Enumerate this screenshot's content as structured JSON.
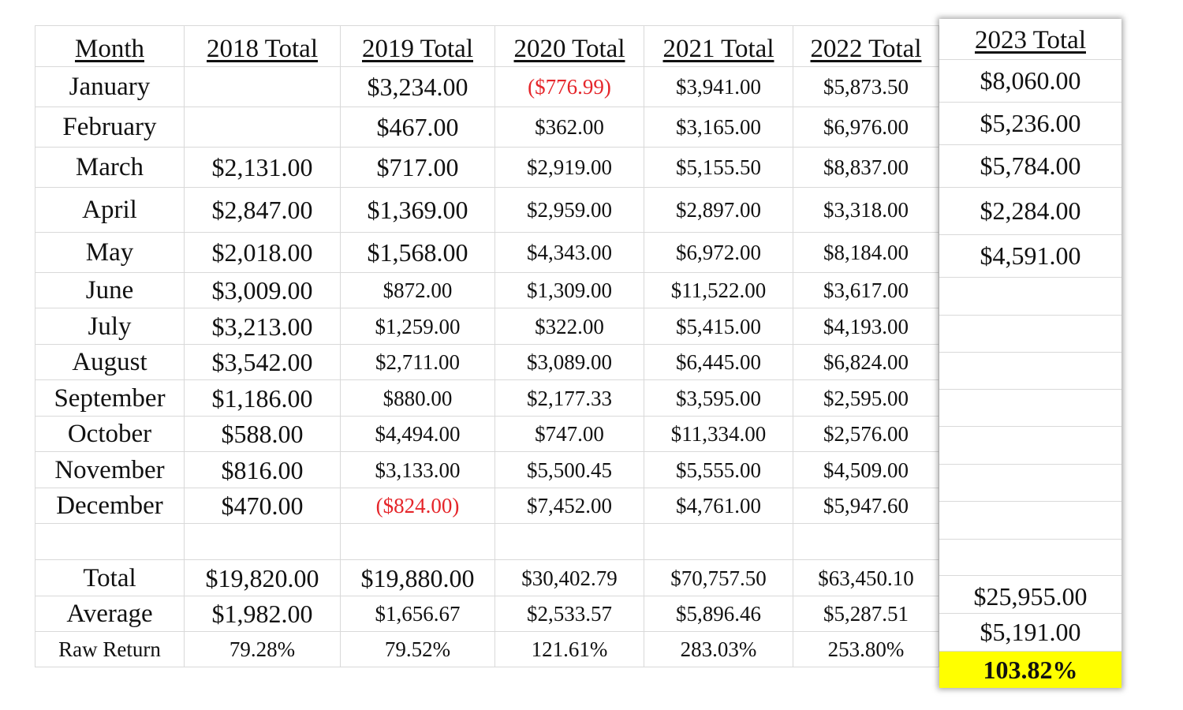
{
  "headers": [
    "Month",
    "2018 Total",
    "2019 Total",
    "2020 Total",
    "2021 Total",
    "2022 Total"
  ],
  "rows": [
    {
      "month": "January",
      "vals": [
        "",
        "$3,234.00",
        "($776.99)",
        "$3,941.00",
        "$5,873.50"
      ]
    },
    {
      "month": "February",
      "vals": [
        "",
        "$467.00",
        "$362.00",
        "$3,165.00",
        "$6,976.00"
      ]
    },
    {
      "month": "March",
      "vals": [
        "$2,131.00",
        "$717.00",
        "$2,919.00",
        "$5,155.50",
        "$8,837.00"
      ]
    },
    {
      "month": "April",
      "vals": [
        "$2,847.00",
        "$1,369.00",
        "$2,959.00",
        "$2,897.00",
        "$3,318.00"
      ]
    },
    {
      "month": "May",
      "vals": [
        "$2,018.00",
        "$1,568.00",
        "$4,343.00",
        "$6,972.00",
        "$8,184.00"
      ]
    },
    {
      "month": "June",
      "vals": [
        "$3,009.00",
        "$872.00",
        "$1,309.00",
        "$11,522.00",
        "$3,617.00"
      ]
    },
    {
      "month": "July",
      "vals": [
        "$3,213.00",
        "$1,259.00",
        "$322.00",
        "$5,415.00",
        "$4,193.00"
      ]
    },
    {
      "month": "August",
      "vals": [
        "$3,542.00",
        "$2,711.00",
        "$3,089.00",
        "$6,445.00",
        "$6,824.00"
      ]
    },
    {
      "month": "September",
      "vals": [
        "$1,186.00",
        "$880.00",
        "$2,177.33",
        "$3,595.00",
        "$2,595.00"
      ]
    },
    {
      "month": "October",
      "vals": [
        "$588.00",
        "$4,494.00",
        "$747.00",
        "$11,334.00",
        "$2,576.00"
      ]
    },
    {
      "month": "November",
      "vals": [
        "$816.00",
        "$3,133.00",
        "$5,500.45",
        "$5,555.00",
        "$4,509.00"
      ]
    },
    {
      "month": "December",
      "vals": [
        "$470.00",
        "($824.00)",
        "$7,452.00",
        "$4,761.00",
        "$5,947.60"
      ]
    },
    {
      "month": "",
      "vals": [
        "",
        "",
        "",
        "",
        ""
      ]
    },
    {
      "month": "Total",
      "vals": [
        "$19,820.00",
        "$19,880.00",
        "$30,402.79",
        "$70,757.50",
        "$63,450.10"
      ]
    },
    {
      "month": "Average",
      "vals": [
        "$1,982.00",
        "$1,656.67",
        "$2,533.57",
        "$5,896.46",
        "$5,287.51"
      ]
    },
    {
      "month": "Raw Return",
      "vals": [
        "79.28%",
        "79.52%",
        "121.61%",
        "283.03%",
        "253.80%"
      ]
    }
  ],
  "col2023": {
    "header": "2023 Total",
    "months": [
      "$8,060.00",
      "$5,236.00",
      "$5,784.00",
      "$2,284.00",
      "$4,591.00",
      "",
      "",
      "",
      "",
      "",
      "",
      ""
    ],
    "total": "$25,955.00",
    "average": "$5,191.00",
    "raw_return": "103.82%"
  },
  "colors": {
    "negative": "#e5252a",
    "highlight": "#ffff00",
    "gridline": "#d9d9d9"
  }
}
